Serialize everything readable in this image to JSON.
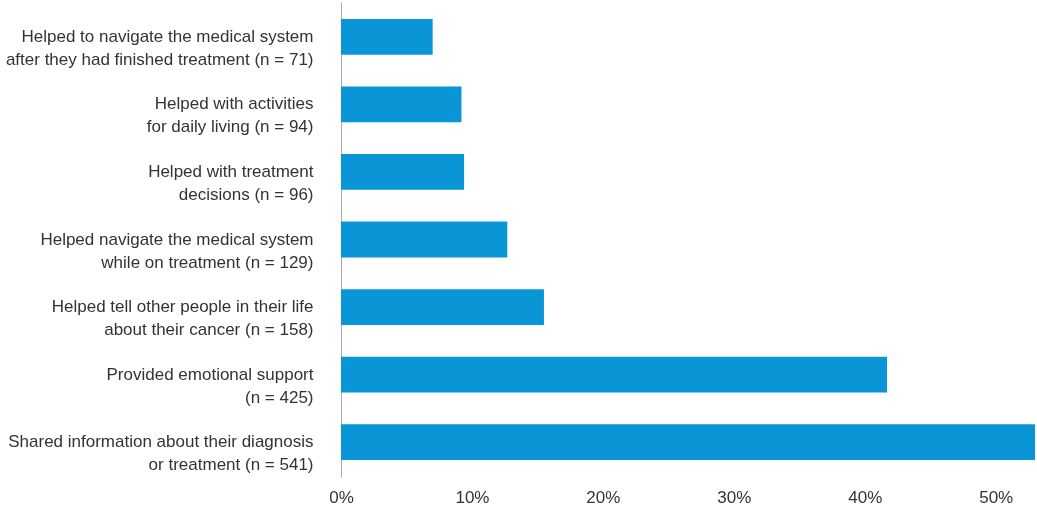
{
  "chart_data": {
    "type": "bar",
    "orientation": "horizontal",
    "categories": [
      "Helped to navigate the medical system\nafter they had finished treatment (n = 71)",
      "Helped with activities\nfor daily living (n = 94)",
      "Helped with treatment\ndecisions (n = 96)",
      "Helped  navigate the medical system\nwhile on treatment (n = 129)",
      "Helped tell other people in their life\nabout their  cancer (n = 158)",
      "Provided emotional support\n(n = 425)",
      "Shared information about their diagnosis\nor treatment (n = 541)"
    ],
    "values": [
      7.0,
      9.2,
      9.4,
      12.7,
      15.5,
      41.7,
      53.0
    ],
    "color": "#0a96d6",
    "xlim": [
      0,
      53
    ],
    "xticks": [
      {
        "value": 0,
        "label": "0%"
      },
      {
        "value": 10,
        "label": "10%"
      },
      {
        "value": 20,
        "label": "20%"
      },
      {
        "value": 30,
        "label": "30%"
      },
      {
        "value": 40,
        "label": "40%"
      },
      {
        "value": 50,
        "label": "50%"
      }
    ],
    "grid": false
  }
}
